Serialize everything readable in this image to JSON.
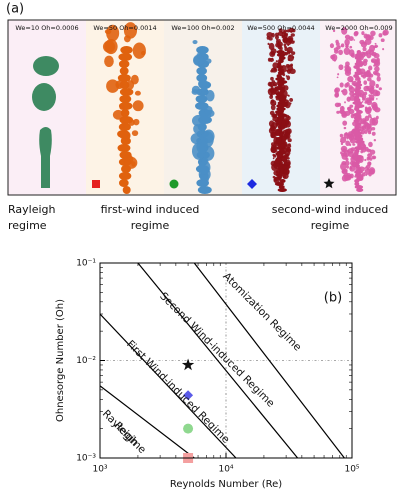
{
  "panel_a": {
    "label": "(a)",
    "cases": [
      "We=10 Oh=0.0006",
      "We=50 Oh=0.0014",
      "We=100 Oh=0.002",
      "We=500 Oh=0.0044",
      "We=2000 Oh=0.009"
    ],
    "regimes": [
      [
        "Rayleigh",
        "regime"
      ],
      [
        "first-wind induced",
        "regime"
      ],
      [
        "second-wind induced",
        "regime"
      ]
    ]
  },
  "chart_data": {
    "type": "line",
    "panel_label": "(b)",
    "x_label": "Reynolds Number (Re)",
    "y_label": "Ohnesorge Number (Oh)",
    "log_x": true,
    "log_y": true,
    "grid": true,
    "xlim": [
      1000,
      100000
    ],
    "ylim": [
      0.001,
      0.1
    ],
    "xticks": [
      {
        "value": 1000,
        "label": "10³"
      },
      {
        "value": 10000,
        "label": "10⁴"
      },
      {
        "value": 100000,
        "label": "10⁵"
      }
    ],
    "yticks": [
      {
        "value": 0.001,
        "label": "10⁻³"
      },
      {
        "value": 0.01,
        "label": "10⁻²"
      },
      {
        "value": 0.1,
        "label": "10⁻¹"
      }
    ],
    "series": [
      {
        "color": "#000000",
        "x": [
          1000,
          5600
        ],
        "y": [
          0.0055,
          0.001
        ]
      },
      {
        "color": "#000000",
        "x": [
          1000,
          12000
        ],
        "y": [
          0.03,
          0.001
        ]
      },
      {
        "color": "#000000",
        "x": [
          2000,
          37000
        ],
        "y": [
          0.1,
          0.001
        ]
      },
      {
        "color": "#000000",
        "x": [
          5600,
          87000
        ],
        "y": [
          0.1,
          0.001
        ]
      }
    ],
    "points": [
      {
        "marker": "star",
        "color": "#111111",
        "x": 5000,
        "y": 0.009
      },
      {
        "marker": "diamond",
        "color": "#5b5be8",
        "x": 5000,
        "y": 0.0044
      },
      {
        "marker": "circle",
        "color": "#8fd88f",
        "x": 5000,
        "y": 0.002
      },
      {
        "marker": "square",
        "color": "#f4a0a0",
        "x": 5000,
        "y": 0.001
      }
    ],
    "annotations": [
      [
        "Atomization Regime"
      ],
      [
        "Second Wind-induced Regime"
      ],
      [
        "First Wind-induced Regime"
      ],
      [
        "Rayleigh",
        "Regime"
      ]
    ]
  }
}
